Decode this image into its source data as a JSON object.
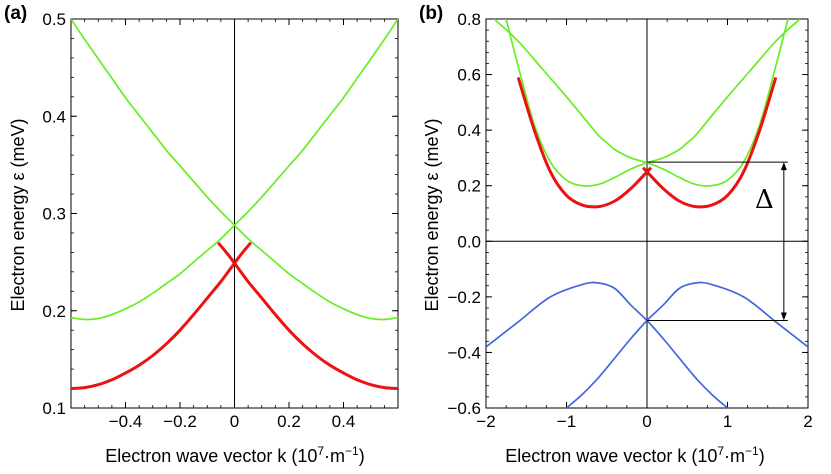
{
  "chart_data": [
    {
      "panel_label": "(a)",
      "type": "line",
      "xlabel": "Electron wave vector  k  (10",
      "xlabel_exp": "7",
      "xlabel_unit_tail": "·m",
      "xlabel_unit_exp": "−1",
      "xlabel_close": ")",
      "ylabel": "Electron  energy  ε  (meV)",
      "xlim": [
        -0.6,
        0.6
      ],
      "ylim": [
        0.1,
        0.5
      ],
      "xticks": [
        {
          "v": -0.4,
          "t": "−0.4"
        },
        {
          "v": -0.2,
          "t": "−0.2"
        },
        {
          "v": 0,
          "t": "0"
        },
        {
          "v": 0.2,
          "t": "0.2"
        },
        {
          "v": 0.4,
          "t": "0.4"
        }
      ],
      "yticks": [
        {
          "v": 0.1,
          "t": "0.1"
        },
        {
          "v": 0.2,
          "t": "0.2"
        },
        {
          "v": 0.3,
          "t": "0.3"
        },
        {
          "v": 0.4,
          "t": "0.4"
        },
        {
          "v": 0.5,
          "t": "0.5"
        }
      ],
      "colors": {
        "green": "#66ee22",
        "red": "#ee1111",
        "blue": "#4466dd"
      },
      "series": [
        {
          "name": "green-branch-1",
          "color": "green",
          "x": [
            -0.6,
            -0.55,
            -0.5,
            -0.45,
            -0.4,
            -0.35,
            -0.3,
            -0.25,
            -0.2,
            -0.15,
            -0.1,
            -0.05,
            0,
            0.05,
            0.1,
            0.15,
            0.2,
            0.25,
            0.3,
            0.35,
            0.4,
            0.45,
            0.5,
            0.55,
            0.6
          ],
          "y": [
            0.5,
            0.479,
            0.459,
            0.439,
            0.419,
            0.401,
            0.383,
            0.365,
            0.349,
            0.333,
            0.317,
            0.302,
            0.288,
            0.274,
            0.262,
            0.25,
            0.238,
            0.228,
            0.218,
            0.209,
            0.202,
            0.196,
            0.192,
            0.191,
            0.193
          ]
        },
        {
          "name": "green-branch-2",
          "color": "green",
          "x": [
            -0.6,
            -0.55,
            -0.5,
            -0.45,
            -0.4,
            -0.35,
            -0.3,
            -0.25,
            -0.2,
            -0.15,
            -0.1,
            -0.05,
            0,
            0.05,
            0.1,
            0.15,
            0.2,
            0.25,
            0.3,
            0.35,
            0.4,
            0.45,
            0.5,
            0.55,
            0.6
          ],
          "y": [
            0.193,
            0.191,
            0.192,
            0.196,
            0.202,
            0.209,
            0.218,
            0.228,
            0.238,
            0.25,
            0.262,
            0.274,
            0.288,
            0.302,
            0.317,
            0.333,
            0.349,
            0.365,
            0.383,
            0.401,
            0.419,
            0.439,
            0.459,
            0.479,
            0.5
          ]
        },
        {
          "name": "red-branch-1",
          "color": "red",
          "x": [
            -0.6,
            -0.55,
            -0.5,
            -0.45,
            -0.4,
            -0.35,
            -0.3,
            -0.25,
            -0.2,
            -0.15,
            -0.1,
            -0.05,
            0,
            0.03,
            0.06
          ],
          "y": [
            0.12,
            0.121,
            0.124,
            0.129,
            0.136,
            0.144,
            0.154,
            0.166,
            0.18,
            0.196,
            0.213,
            0.23,
            0.249,
            0.26,
            0.27
          ]
        },
        {
          "name": "red-branch-2",
          "color": "red",
          "x": [
            -0.06,
            -0.03,
            0,
            0.05,
            0.1,
            0.15,
            0.2,
            0.25,
            0.3,
            0.35,
            0.4,
            0.45,
            0.5,
            0.55,
            0.6
          ],
          "y": [
            0.27,
            0.26,
            0.249,
            0.23,
            0.213,
            0.196,
            0.18,
            0.166,
            0.154,
            0.144,
            0.136,
            0.129,
            0.124,
            0.121,
            0.12
          ]
        }
      ]
    },
    {
      "panel_label": "(b)",
      "type": "line",
      "xlabel": "Electron wave vector  k  (10",
      "xlabel_exp": "7",
      "xlabel_unit_tail": "·m",
      "xlabel_unit_exp": "−1",
      "xlabel_close": ")",
      "ylabel": "Electron  energy  ε  (meV)",
      "xlim": [
        -2,
        2
      ],
      "ylim": [
        -0.6,
        0.8
      ],
      "xticks": [
        {
          "v": -2,
          "t": "−2"
        },
        {
          "v": -1,
          "t": "−1"
        },
        {
          "v": 0,
          "t": "0"
        },
        {
          "v": 1,
          "t": "1"
        },
        {
          "v": 2,
          "t": "2"
        }
      ],
      "yticks": [
        {
          "v": -0.6,
          "t": "−0.6"
        },
        {
          "v": -0.4,
          "t": "−0.4"
        },
        {
          "v": -0.2,
          "t": "−0.2"
        },
        {
          "v": 0,
          "t": "0.0"
        },
        {
          "v": 0.2,
          "t": "0.2"
        },
        {
          "v": 0.4,
          "t": "0.4"
        },
        {
          "v": 0.6,
          "t": "0.6"
        },
        {
          "v": 0.8,
          "t": "0.8"
        }
      ],
      "annotation": "Δ",
      "delta_range": [
        -0.285,
        0.285
      ],
      "series": [
        {
          "name": "green-branch-1",
          "color": "green",
          "x": [
            -1.9,
            -1.6,
            -1.3,
            -1.0,
            -0.8,
            -0.6,
            -0.5,
            -0.4,
            -0.2,
            0,
            0.2,
            0.4,
            0.6,
            0.8,
            1.0,
            1.2,
            1.4,
            1.6,
            1.75
          ],
          "y": [
            0.8,
            0.72,
            0.62,
            0.52,
            0.45,
            0.38,
            0.355,
            0.33,
            0.3,
            0.283,
            0.26,
            0.23,
            0.205,
            0.2,
            0.22,
            0.285,
            0.42,
            0.63,
            0.8
          ]
        },
        {
          "name": "green-branch-2",
          "color": "green",
          "x": [
            -1.75,
            -1.6,
            -1.4,
            -1.2,
            -1.0,
            -0.8,
            -0.6,
            -0.4,
            -0.2,
            0,
            0.2,
            0.4,
            0.5,
            0.6,
            0.8,
            1.0,
            1.3,
            1.6,
            1.9
          ],
          "y": [
            0.8,
            0.63,
            0.42,
            0.285,
            0.22,
            0.2,
            0.205,
            0.23,
            0.26,
            0.283,
            0.3,
            0.33,
            0.355,
            0.38,
            0.45,
            0.52,
            0.62,
            0.72,
            0.8
          ]
        },
        {
          "name": "red-branch-1",
          "color": "red",
          "x": [
            -1.6,
            -1.4,
            -1.2,
            -1.0,
            -0.8,
            -0.6,
            -0.4,
            -0.2,
            0,
            0.05
          ],
          "y": [
            0.59,
            0.4,
            0.25,
            0.165,
            0.13,
            0.125,
            0.145,
            0.19,
            0.25,
            0.265
          ]
        },
        {
          "name": "red-branch-2",
          "color": "red",
          "x": [
            -0.05,
            0,
            0.2,
            0.4,
            0.6,
            0.8,
            1.0,
            1.2,
            1.4,
            1.6
          ],
          "y": [
            0.265,
            0.25,
            0.19,
            0.145,
            0.125,
            0.13,
            0.165,
            0.25,
            0.4,
            0.59
          ]
        },
        {
          "name": "blue-branch-1",
          "color": "blue",
          "x": [
            -2.0,
            -1.6,
            -1.2,
            -0.8,
            -0.6,
            -0.4,
            -0.2,
            0,
            0.2,
            0.4,
            0.6,
            0.8,
            1.0
          ],
          "y": [
            -0.38,
            -0.29,
            -0.2,
            -0.155,
            -0.15,
            -0.17,
            -0.23,
            -0.285,
            -0.35,
            -0.42,
            -0.49,
            -0.55,
            -0.6
          ]
        },
        {
          "name": "blue-branch-2",
          "color": "blue",
          "x": [
            -1.0,
            -0.8,
            -0.6,
            -0.4,
            -0.2,
            0,
            0.2,
            0.4,
            0.6,
            0.8,
            1.2,
            1.6,
            2.0
          ],
          "y": [
            -0.6,
            -0.55,
            -0.49,
            -0.42,
            -0.35,
            -0.285,
            -0.23,
            -0.17,
            -0.15,
            -0.155,
            -0.2,
            -0.29,
            -0.38
          ]
        }
      ]
    }
  ]
}
